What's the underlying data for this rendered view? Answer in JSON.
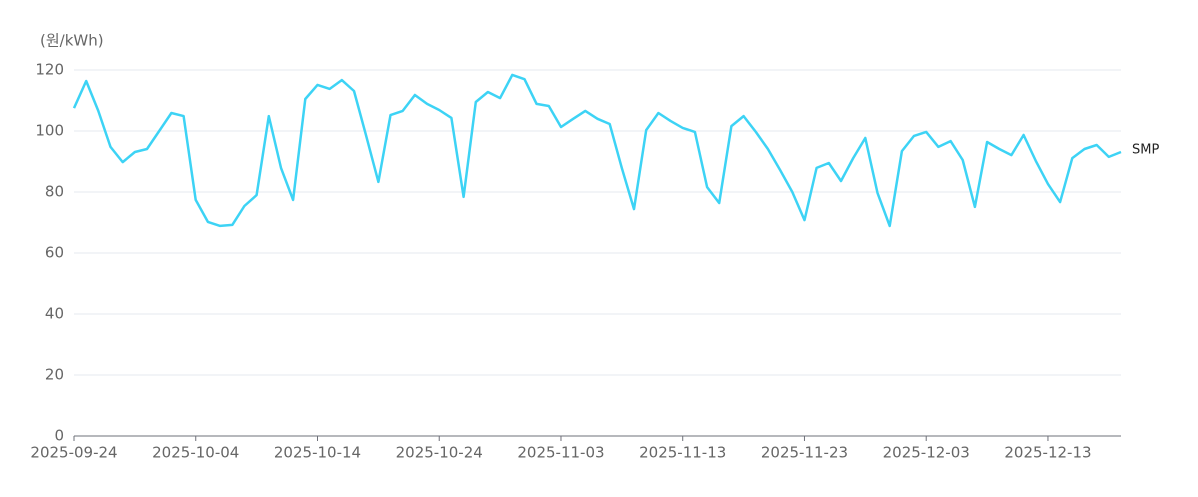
{
  "chart_data": {
    "type": "line",
    "y_label": "(원/kWh)",
    "x": [
      "2025-09-24",
      "2025-09-25",
      "2025-09-26",
      "2025-09-27",
      "2025-09-28",
      "2025-09-29",
      "2025-09-30",
      "2025-10-01",
      "2025-10-02",
      "2025-10-03",
      "2025-10-04",
      "2025-10-05",
      "2025-10-06",
      "2025-10-07",
      "2025-10-08",
      "2025-10-09",
      "2025-10-10",
      "2025-10-11",
      "2025-10-12",
      "2025-10-13",
      "2025-10-14",
      "2025-10-15",
      "2025-10-16",
      "2025-10-17",
      "2025-10-18",
      "2025-10-19",
      "2025-10-20",
      "2025-10-21",
      "2025-10-22",
      "2025-10-23",
      "2025-10-24",
      "2025-10-25",
      "2025-10-26",
      "2025-10-27",
      "2025-10-28",
      "2025-10-29",
      "2025-10-30",
      "2025-10-31",
      "2025-11-01",
      "2025-11-02",
      "2025-11-03",
      "2025-11-04",
      "2025-11-05",
      "2025-11-06",
      "2025-11-07",
      "2025-11-08",
      "2025-11-09",
      "2025-11-10",
      "2025-11-11",
      "2025-11-12",
      "2025-11-13",
      "2025-11-14",
      "2025-11-15",
      "2025-11-16",
      "2025-11-17",
      "2025-11-18",
      "2025-11-19",
      "2025-11-20",
      "2025-11-21",
      "2025-11-22",
      "2025-11-23",
      "2025-11-24",
      "2025-11-25",
      "2025-11-26",
      "2025-11-27",
      "2025-11-28",
      "2025-11-29",
      "2025-11-30",
      "2025-12-01",
      "2025-12-02",
      "2025-12-03",
      "2025-12-04",
      "2025-12-05",
      "2025-12-06",
      "2025-12-07",
      "2025-12-08",
      "2025-12-09",
      "2025-12-10",
      "2025-12-11",
      "2025-12-12",
      "2025-12-13",
      "2025-12-14",
      "2025-12-15",
      "2025-12-16",
      "2025-12-17",
      "2025-12-18",
      "2025-12-19"
    ],
    "series": [
      {
        "name": "SMP",
        "color": "#3dd3f5",
        "values": [
          107.5,
          116.4,
          106.6,
          94.8,
          89.8,
          93.1,
          94.1,
          100,
          105.9,
          104.9,
          77.4,
          70.2,
          68.9,
          69.2,
          75.4,
          79,
          104.9,
          87.9,
          77.4,
          110.5,
          115.1,
          113.8,
          116.7,
          113.1,
          98.4,
          83.3,
          105.2,
          106.6,
          111.8,
          108.9,
          106.9,
          104.3,
          78.4,
          109.5,
          112.8,
          110.8,
          118.4,
          117,
          108.9,
          108.2,
          101.3,
          104,
          106.6,
          104,
          102.3,
          87.9,
          74.4,
          100.3,
          105.9,
          103.3,
          101,
          99.7,
          81.6,
          76.4,
          101.6,
          104.9,
          99.7,
          94.1,
          87.2,
          80,
          70.8,
          87.9,
          89.5,
          83.6,
          91.1,
          97.7,
          79.7,
          68.9,
          93.4,
          98.4,
          99.7,
          94.8,
          96.7,
          90.5,
          75.1,
          96.4,
          94.1,
          92.1,
          98.7,
          90.2,
          82.6,
          76.7,
          91.1,
          94.1,
          95.4,
          91.5,
          93.1
        ]
      }
    ],
    "xlim": [
      "2025-09-24",
      "2025-12-19"
    ],
    "xticks": [
      "2025-09-24",
      "2025-10-04",
      "2025-10-14",
      "2025-10-24",
      "2025-11-03",
      "2025-11-13",
      "2025-11-23",
      "2025-12-03",
      "2025-12-13"
    ],
    "ylim": [
      0,
      120
    ],
    "yticks": [
      0,
      20,
      40,
      60,
      80,
      100,
      120
    ],
    "grid": true
  }
}
